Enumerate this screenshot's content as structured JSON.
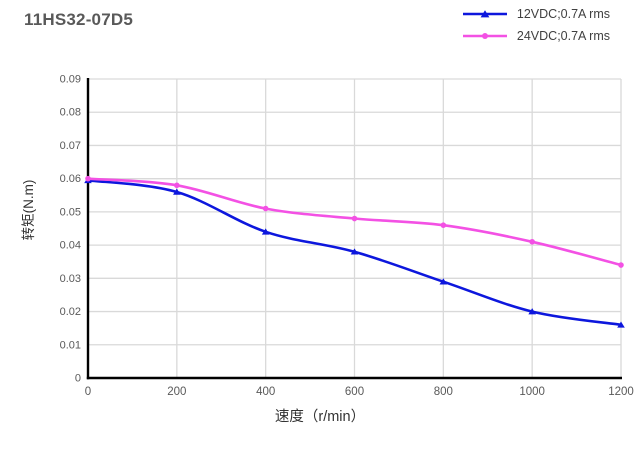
{
  "title": "11HS32-07D5",
  "colors": {
    "series_blue": "#0d17dd",
    "series_magenta": "#f351e4",
    "gridline": "#d9d9d9",
    "axis_spine": "#000000",
    "tick_label": "#595959",
    "axis_label": "#333333",
    "title_text": "#595959",
    "legend_text": "#404040"
  },
  "chart_data": {
    "type": "line",
    "title": "11HS32-07D5",
    "x": [
      0,
      200,
      400,
      600,
      800,
      1000,
      1200
    ],
    "series": [
      {
        "name": "12VDC;0.7A rms",
        "color": "#0d17dd",
        "marker": "triangle",
        "values": [
          0.0595,
          0.056,
          0.044,
          0.038,
          0.029,
          0.02,
          0.016
        ]
      },
      {
        "name": "24VDC;0.7A rms",
        "color": "#f351e4",
        "marker": "circle",
        "values": [
          0.06,
          0.058,
          0.051,
          0.048,
          0.046,
          0.041,
          0.034
        ]
      }
    ],
    "xlabel": "速度（r/min）",
    "ylabel": "转矩(N.m)",
    "xlim": [
      0,
      1200
    ],
    "ylim": [
      0,
      0.09
    ],
    "x_tick_labels": [
      "0",
      "200",
      "400",
      "600",
      "800",
      "1000",
      "1200"
    ],
    "y_tick_labels": [
      "0",
      "0.01",
      "0.02",
      "0.03",
      "0.04",
      "0.05",
      "0.06",
      "0.07",
      "0.08",
      "0.09"
    ],
    "grid": true,
    "legend_position": "top-right",
    "line_style": "smooth"
  }
}
